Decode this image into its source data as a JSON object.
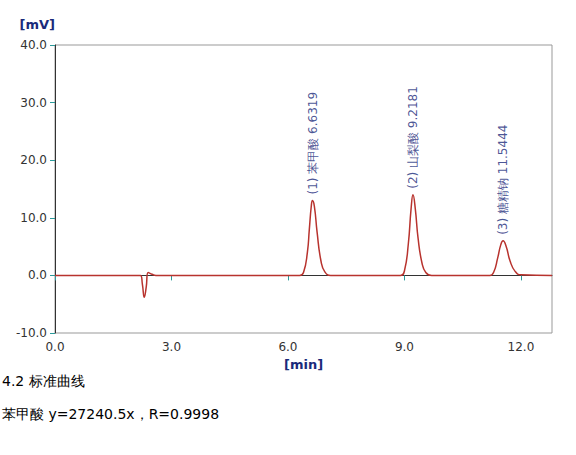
{
  "chart_data": {
    "type": "line",
    "x_label": "[min]",
    "y_label": "[mV]",
    "color": "#b8332e",
    "grid": false,
    "xlim": [
      0,
      12.8
    ],
    "ylim": [
      -10,
      40
    ],
    "xticks": [
      {
        "value": 0,
        "label": "0.0"
      },
      {
        "value": 3,
        "label": "3.0"
      },
      {
        "value": 6,
        "label": "6.0"
      },
      {
        "value": 9,
        "label": "9.0"
      },
      {
        "value": 12,
        "label": "12.0"
      }
    ],
    "yticks": [
      {
        "value": -10,
        "label": "-10.0"
      },
      {
        "value": 0,
        "label": "0.0"
      },
      {
        "value": 10,
        "label": "10.0"
      },
      {
        "value": 20,
        "label": "20.0"
      },
      {
        "value": 30,
        "label": "30.0"
      },
      {
        "value": 40,
        "label": "40.0"
      }
    ],
    "x": [
      0,
      2.0,
      2.2,
      2.25,
      2.3,
      2.35,
      2.4,
      2.5,
      2.6,
      6.3,
      6.4,
      6.5,
      6.55,
      6.6,
      6.63,
      6.68,
      6.75,
      6.85,
      6.95,
      7.1,
      8.9,
      9.0,
      9.1,
      9.17,
      9.22,
      9.28,
      9.35,
      9.45,
      9.55,
      9.7,
      11.2,
      11.3,
      11.4,
      11.48,
      11.54,
      11.62,
      11.72,
      11.85,
      12.0,
      12.8
    ],
    "values": [
      0,
      0,
      0,
      -1.5,
      -3.8,
      -2,
      0.5,
      0.2,
      0,
      0,
      0.5,
      4,
      8,
      12,
      13,
      12,
      7.5,
      2.5,
      0.6,
      0,
      0,
      0.8,
      5.5,
      11.5,
      14,
      11.5,
      6.5,
      2.2,
      0.5,
      0,
      0,
      0.6,
      3,
      5.3,
      6,
      5,
      2.5,
      0.7,
      0.1,
      0
    ],
    "annotations": [
      {
        "text": "(1) 苯甲酸 6.6319",
        "x": 6.6319,
        "y": 13
      },
      {
        "text": "(2) 山梨酸 9.2181",
        "x": 9.2181,
        "y": 14
      },
      {
        "text": "(3) 糖精钠 11.5444",
        "x": 11.5444,
        "y": 6
      }
    ],
    "notes": [
      "4.2 标准曲线",
      "苯甲酸 y=27240.5x，R=0.9998"
    ]
  }
}
